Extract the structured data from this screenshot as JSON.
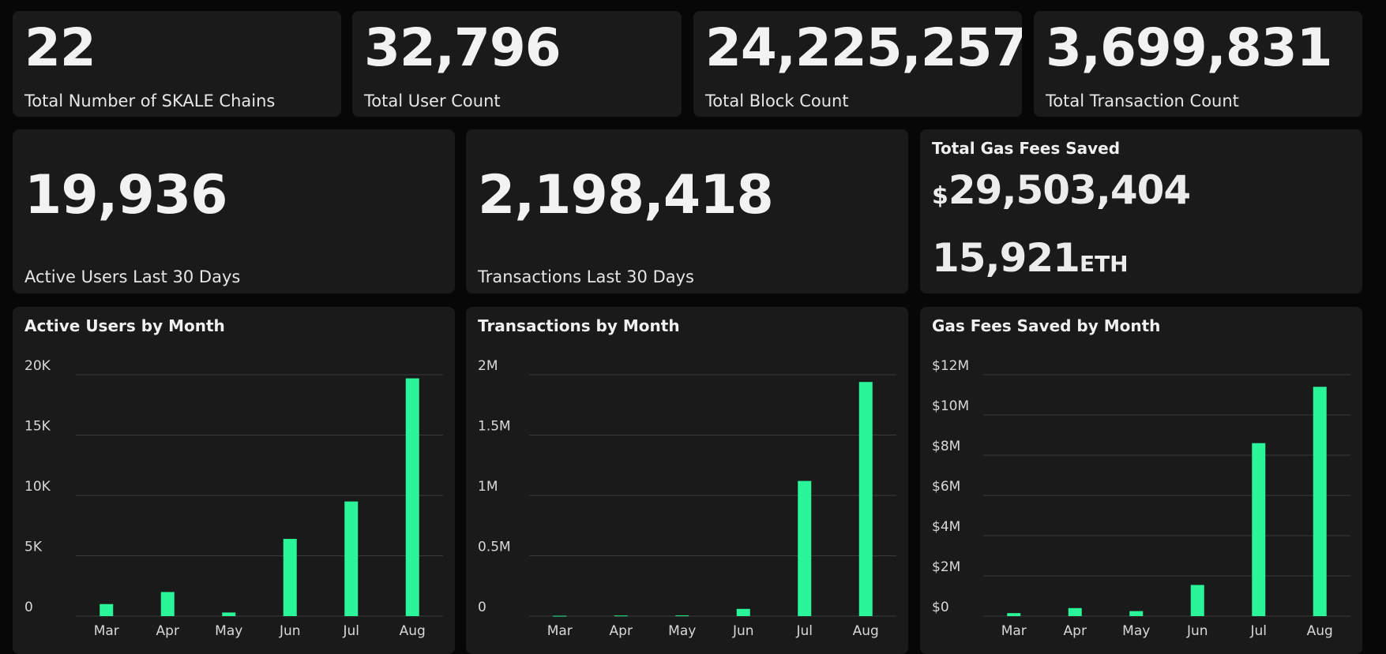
{
  "stats_top": [
    {
      "value": "22",
      "label": "Total Number of SKALE Chains"
    },
    {
      "value": "32,796",
      "label": "Total User Count"
    },
    {
      "value": "24,225,257",
      "label": "Total Block Count"
    },
    {
      "value": "3,699,831",
      "label": "Total Transaction Count"
    }
  ],
  "stats_mid": [
    {
      "value": "19,936",
      "label": "Active Users Last 30 Days"
    },
    {
      "value": "2,198,418",
      "label": "Transactions Last 30 Days"
    }
  ],
  "gas_saved": {
    "title": "Total Gas Fees Saved",
    "usd_symbol": "$",
    "usd_value": "29,503,404",
    "eth_value": "15,921",
    "eth_unit": "ETH"
  },
  "colors": {
    "bar": "#2af598",
    "grid": "#3a3a3c",
    "card": "#1a1a1b",
    "background": "#070707"
  },
  "chart_data": [
    {
      "type": "bar",
      "title": "Active Users by Month",
      "categories": [
        "Mar",
        "Apr",
        "May",
        "Jun",
        "Jul",
        "Aug"
      ],
      "values": [
        1000,
        2000,
        300,
        6400,
        9500,
        19700
      ],
      "ylim": [
        0,
        20000
      ],
      "yticks": [
        0,
        5000,
        10000,
        15000,
        20000
      ],
      "ytick_labels": [
        "0",
        "5K",
        "10K",
        "15K",
        "20K"
      ],
      "grid": true
    },
    {
      "type": "bar",
      "title": "Transactions by Month",
      "categories": [
        "Mar",
        "Apr",
        "May",
        "Jun",
        "Jul",
        "Aug"
      ],
      "values": [
        3000,
        5000,
        6000,
        60000,
        1120000,
        1940000
      ],
      "ylim": [
        0,
        2000000
      ],
      "yticks": [
        0,
        500000,
        1000000,
        1500000,
        2000000
      ],
      "ytick_labels": [
        "0",
        "0.5M",
        "1M",
        "1.5M",
        "2M"
      ],
      "grid": true
    },
    {
      "type": "bar",
      "title": "Gas Fees Saved by Month",
      "categories": [
        "Mar",
        "Apr",
        "May",
        "Jun",
        "Jul",
        "Aug"
      ],
      "values": [
        150000,
        400000,
        250000,
        1550000,
        8600000,
        11400000
      ],
      "ylim": [
        0,
        12000000
      ],
      "yticks": [
        0,
        2000000,
        4000000,
        6000000,
        8000000,
        10000000,
        12000000
      ],
      "ytick_labels": [
        "$0",
        "$2M",
        "$4M",
        "$6M",
        "$8M",
        "$10M",
        "$12M"
      ],
      "grid": true
    }
  ]
}
